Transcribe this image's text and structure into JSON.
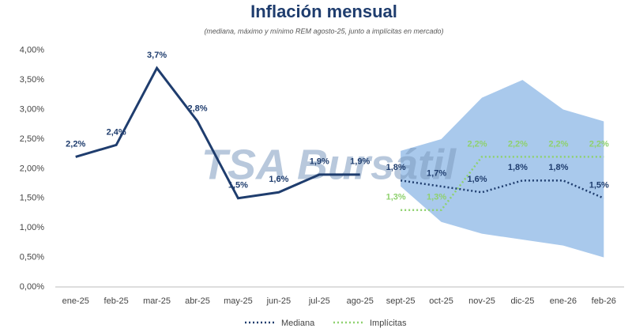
{
  "chart_data": {
    "type": "line",
    "title": "Inflación mensual",
    "subtitle": "(mediana, máximo y mínimo REM agosto-25, junto a implícitas en mercado)",
    "watermark": "TSA Bursátil",
    "categories": [
      "ene-25",
      "feb-25",
      "mar-25",
      "abr-25",
      "may-25",
      "jun-25",
      "jul-25",
      "ago-25",
      "sept-25",
      "oct-25",
      "nov-25",
      "dic-25",
      "ene-26",
      "feb-26"
    ],
    "ylim": [
      0,
      4.25
    ],
    "yticks": [
      {
        "value": 0,
        "label": "0,00%"
      },
      {
        "value": 0.5,
        "label": "0,50%"
      },
      {
        "value": 1,
        "label": "1,00%"
      },
      {
        "value": 1.5,
        "label": "1,50%"
      },
      {
        "value": 2,
        "label": "2,00%"
      },
      {
        "value": 2.5,
        "label": "2,50%"
      },
      {
        "value": 3,
        "label": "3,00%"
      },
      {
        "value": 3.5,
        "label": "3,50%"
      },
      {
        "value": 4,
        "label": "4,00%"
      }
    ],
    "grid": false,
    "band": {
      "color": "#a9c9ec",
      "upper": [
        null,
        null,
        null,
        null,
        null,
        null,
        null,
        null,
        2.3,
        2.5,
        3.2,
        3.5,
        3.0,
        2.8
      ],
      "lower": [
        null,
        null,
        null,
        null,
        null,
        null,
        null,
        null,
        1.7,
        1.1,
        0.9,
        0.8,
        0.7,
        0.5
      ]
    },
    "series": [
      {
        "color": "#1f3d6e",
        "dash": "solid",
        "values": [
          2.2,
          2.4,
          3.7,
          2.8,
          1.5,
          1.6,
          1.9,
          1.9,
          null,
          null,
          null,
          null,
          null,
          null
        ],
        "value_labels": [
          "2,2%",
          "2,4%",
          "3,7%",
          "2,8%",
          "1,5%",
          "1,6%",
          "1,9%",
          "1,9%",
          null,
          null,
          null,
          null,
          null,
          null
        ]
      },
      {
        "name": "Mediana",
        "color": "#1f3d6e",
        "dash": "dotted",
        "values": [
          null,
          null,
          null,
          null,
          null,
          null,
          null,
          null,
          1.8,
          1.7,
          1.6,
          1.8,
          1.8,
          1.5
        ],
        "value_labels": [
          null,
          null,
          null,
          null,
          null,
          null,
          null,
          null,
          "1,8%",
          "1,7%",
          "1,6%",
          "1,8%",
          "1,8%",
          "1,5%"
        ]
      },
      {
        "name": "Implícitas",
        "color": "#8fd16f",
        "dash": "dotted",
        "values": [
          null,
          null,
          null,
          null,
          null,
          null,
          null,
          null,
          1.3,
          1.3,
          2.2,
          2.2,
          2.2,
          2.2
        ],
        "value_labels": [
          null,
          null,
          null,
          null,
          null,
          null,
          null,
          null,
          "1,3%",
          "1,3%",
          "2,2%",
          "2,2%",
          "2,2%",
          "2,2%"
        ]
      }
    ]
  }
}
